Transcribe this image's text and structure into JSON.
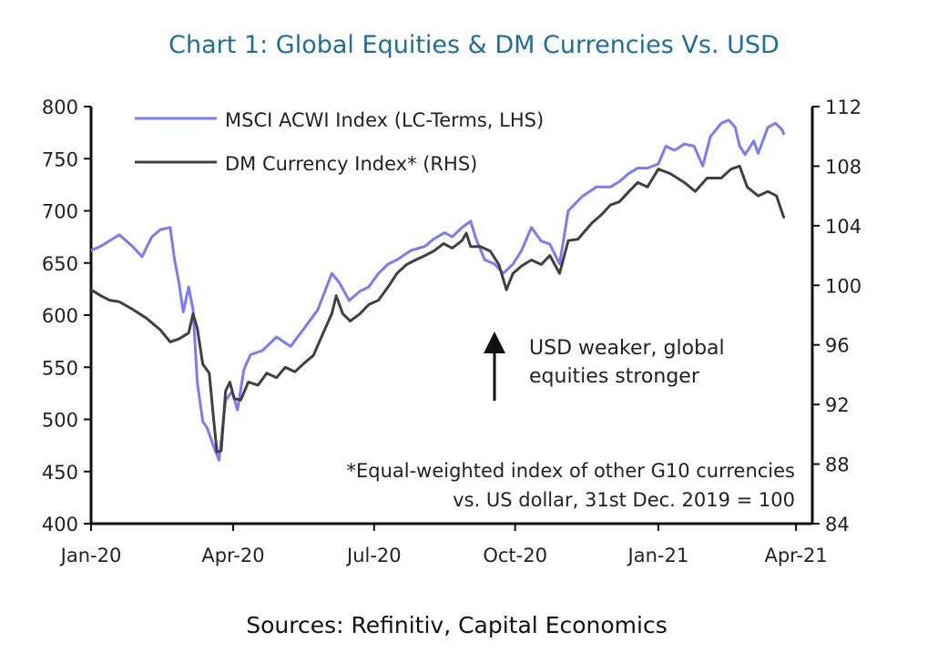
{
  "chart_data": {
    "type": "line",
    "title": "Chart 1: Global Equities & DM Currencies Vs. USD",
    "source": "Sources: Refinitiv, Capital Economics",
    "x_unit": "weeks since 1 Jan 2020",
    "xlim": [
      0,
      66.5
    ],
    "x_ticks": [
      {
        "label": "Jan-20",
        "x": 0
      },
      {
        "label": "Apr-20",
        "x": 13.1
      },
      {
        "label": "Jul-20",
        "x": 26.1
      },
      {
        "label": "Oct-20",
        "x": 39.1
      },
      {
        "label": "Jan-21",
        "x": 52.3
      },
      {
        "label": "Apr-21",
        "x": 65.0
      }
    ],
    "y_left": {
      "lim": [
        400,
        800
      ],
      "ticks": [
        400,
        450,
        500,
        550,
        600,
        650,
        700,
        750,
        800
      ]
    },
    "y_right": {
      "lim": [
        84,
        112
      ],
      "ticks": [
        84,
        88,
        92,
        96,
        100,
        104,
        108,
        112
      ]
    },
    "grid": false,
    "legend_position": "top-left",
    "series": [
      {
        "name": "MSCI ACWI Index (LC-Terms, LHS)",
        "axis": "left",
        "color": "#7b7bf7",
        "x": [
          0,
          0.9,
          2.6,
          3.8,
          4.7,
          5.6,
          6.4,
          7.3,
          7.7,
          8.1,
          8.5,
          9.0,
          9.4,
          9.8,
          10.3,
          10.7,
          11.3,
          11.8,
          12.4,
          13.0,
          13.5,
          14.1,
          14.7,
          15.8,
          17.1,
          18.4,
          19.7,
          20.9,
          22.2,
          22.9,
          23.8,
          24.8,
          25.6,
          26.5,
          27.4,
          28.2,
          29.5,
          30.8,
          31.6,
          32.6,
          33.3,
          34.2,
          35.0,
          35.5,
          36.3,
          37.2,
          38.0,
          38.9,
          39.7,
          40.6,
          41.5,
          42.3,
          43.2,
          44.0,
          45.3,
          46.6,
          47.9,
          48.7,
          49.6,
          50.4,
          51.3,
          52.3,
          53.0,
          53.8,
          54.7,
          55.6,
          56.4,
          57.1,
          58.1,
          58.8,
          59.4,
          59.8,
          60.3,
          61.1,
          61.5,
          62.4,
          63.1,
          63.7,
          63.9
        ],
        "y": [
          662,
          666,
          677,
          666,
          656,
          675,
          682,
          684,
          653,
          631,
          603,
          627,
          605,
          535,
          498,
          492,
          474,
          461,
          518,
          527,
          509,
          548,
          562,
          566,
          579,
          570,
          588,
          605,
          640,
          631,
          614,
          623,
          627,
          640,
          649,
          653,
          662,
          666,
          673,
          679,
          675,
          684,
          690,
          673,
          653,
          649,
          640,
          649,
          662,
          684,
          671,
          668,
          649,
          700,
          714,
          723,
          723,
          728,
          736,
          741,
          741,
          745,
          762,
          758,
          764,
          762,
          743,
          771,
          784,
          787,
          780,
          762,
          754,
          767,
          755,
          780,
          784,
          778,
          773
        ]
      },
      {
        "name": "DM Currency Index* (RHS)",
        "axis": "right",
        "color": "#404040",
        "x": [
          0,
          0.9,
          1.7,
          2.6,
          3.8,
          5.1,
          6.4,
          7.3,
          8.1,
          9.0,
          9.4,
          9.8,
          10.3,
          10.9,
          11.3,
          11.6,
          12.0,
          12.4,
          12.8,
          13.2,
          13.8,
          14.5,
          15.4,
          16.2,
          17.1,
          17.9,
          18.8,
          19.7,
          20.5,
          21.4,
          22.2,
          22.6,
          23.2,
          23.9,
          24.8,
          25.6,
          26.5,
          27.4,
          28.2,
          29.1,
          29.9,
          30.8,
          31.6,
          32.5,
          33.3,
          34.2,
          34.6,
          35.0,
          35.9,
          36.8,
          37.6,
          38.3,
          38.9,
          39.7,
          40.6,
          41.5,
          42.3,
          43.2,
          44.0,
          44.9,
          46.2,
          47.0,
          47.9,
          48.7,
          49.6,
          50.4,
          51.3,
          52.3,
          53.4,
          54.7,
          55.7,
          56.8,
          58.1,
          59.0,
          59.8,
          60.5,
          61.5,
          62.4,
          63.2,
          63.9
        ],
        "y": [
          99.7,
          99.3,
          99.0,
          98.9,
          98.4,
          97.8,
          97.0,
          96.2,
          96.4,
          96.8,
          98.1,
          97.1,
          94.7,
          94.1,
          91.0,
          88.8,
          88.9,
          92.9,
          93.5,
          92.4,
          92.3,
          93.5,
          93.3,
          94.1,
          93.8,
          94.5,
          94.2,
          94.8,
          95.3,
          96.8,
          98.1,
          99.3,
          98.1,
          97.6,
          98.1,
          98.7,
          99.0,
          99.9,
          100.8,
          101.4,
          101.7,
          102.0,
          102.3,
          102.8,
          102.5,
          103.0,
          103.5,
          102.6,
          102.6,
          102.3,
          101.4,
          99.7,
          100.8,
          101.3,
          101.7,
          101.4,
          102.0,
          100.8,
          103.0,
          103.1,
          104.2,
          104.7,
          105.4,
          105.6,
          106.3,
          106.9,
          106.6,
          107.8,
          107.5,
          106.9,
          106.3,
          107.2,
          107.2,
          107.8,
          108.0,
          106.6,
          106.0,
          106.3,
          106.0,
          104.5
        ]
      }
    ],
    "annotations": {
      "arrow_label_line1": "USD weaker, global",
      "arrow_label_line2": "equities stronger",
      "footnote_line1": "*Equal-weighted index of other G10 currencies",
      "footnote_line2": "vs. US dollar, 31st Dec. 2019 = 100"
    }
  }
}
